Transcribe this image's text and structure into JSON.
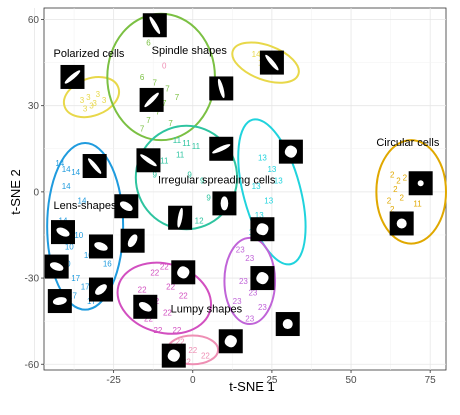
{
  "chart_data": {
    "type": "scatter",
    "title": "",
    "xlabel": "t-SNE 1",
    "ylabel": "t-SNE 2",
    "xlim": [
      -47,
      80
    ],
    "ylim": [
      -62,
      64
    ],
    "x_ticks": [
      -25,
      0,
      25,
      50,
      75
    ],
    "x_tick_labels": [
      "-25",
      "0",
      "25",
      "50",
      "75"
    ],
    "y_ticks": [
      -60,
      -30,
      0,
      30,
      60
    ],
    "y_tick_labels": [
      "-60",
      "-30",
      "0",
      "30",
      "60"
    ],
    "grid": true,
    "legend": "none",
    "groups": [
      {
        "label": "Polarized cells",
        "label_pos": [
          -44,
          47
        ],
        "color": "#e8d84a",
        "points": [
          [
            -35,
            32,
            "3"
          ],
          [
            -33,
            33,
            "3"
          ],
          [
            -31,
            31,
            "3"
          ],
          [
            -34,
            29,
            "3"
          ],
          [
            -30,
            34,
            "3"
          ],
          [
            -28,
            32,
            "3"
          ],
          [
            -32,
            30,
            "3"
          ]
        ],
        "ellipse": {
          "cx": -32,
          "cy": 33,
          "rx": 9,
          "ry": 6.5,
          "angle": 20
        }
      },
      {
        "label": "Spindle shapes",
        "label_pos": [
          -13,
          48
        ],
        "color": "#7bc043",
        "points": [
          [
            -15,
            57,
            "6"
          ],
          [
            -13,
            58,
            "6"
          ],
          [
            -14,
            52,
            "6"
          ],
          [
            -16,
            40,
            "6"
          ],
          [
            -12,
            38,
            "7"
          ],
          [
            -8,
            36,
            "7"
          ],
          [
            -5,
            33,
            "7"
          ],
          [
            -9,
            31,
            "7"
          ],
          [
            -11,
            28,
            "7"
          ],
          [
            -14,
            25,
            "7"
          ],
          [
            -16,
            22,
            "7"
          ],
          [
            -7,
            24,
            "7"
          ]
        ],
        "ellipse": {
          "cx": -10,
          "cy": 40,
          "rx": 17,
          "ry": 22,
          "angle": 0
        }
      },
      {
        "label": "",
        "label_pos": null,
        "color": "#e8d84a",
        "points": [
          [
            20,
            48,
            "14"
          ],
          [
            22,
            45,
            "14"
          ],
          [
            24,
            48,
            "14"
          ],
          [
            25,
            42,
            "14"
          ]
        ],
        "ellipse": {
          "cx": 23,
          "cy": 45,
          "rx": 11,
          "ry": 6,
          "angle": -20
        }
      },
      {
        "label": "",
        "label_pos": null,
        "color": "#ee8fb4",
        "points": [
          [
            -9,
            44,
            "0"
          ]
        ],
        "ellipse": null
      },
      {
        "label": "Irregular spreading cells",
        "label_pos": [
          -11,
          3
        ],
        "color": "#2ec4a0",
        "points": [
          [
            -5,
            18,
            "11"
          ],
          [
            -2,
            17,
            "11"
          ],
          [
            1,
            16,
            "11"
          ],
          [
            -4,
            13,
            "11"
          ],
          [
            -9,
            11,
            "11"
          ],
          [
            -12,
            6,
            "9"
          ],
          [
            -1,
            6,
            "9"
          ],
          [
            3,
            4,
            "9"
          ],
          [
            5,
            -2,
            "9"
          ],
          [
            8,
            -6,
            "12"
          ],
          [
            -2,
            -8,
            "9"
          ],
          [
            2,
            -10,
            "12"
          ]
        ],
        "ellipse": {
          "cx": -2,
          "cy": 5,
          "rx": 16,
          "ry": 18,
          "angle": 0
        }
      },
      {
        "label": "",
        "label_pos": null,
        "color": "#20d3dd",
        "points": [
          [
            22,
            12,
            "13"
          ],
          [
            25,
            8,
            "13"
          ],
          [
            27,
            4,
            "13"
          ],
          [
            20,
            2,
            "13"
          ],
          [
            24,
            -3,
            "13"
          ],
          [
            21,
            -8,
            "13"
          ],
          [
            19,
            -14,
            "13"
          ]
        ],
        "ellipse": {
          "cx": 25,
          "cy": 0,
          "rx": 9,
          "ry": 26,
          "angle": 15
        }
      },
      {
        "label": "Circular cells",
        "label_pos": [
          58,
          16
        ],
        "color": "#e0a800",
        "points": [
          [
            63,
            6,
            "2"
          ],
          [
            65,
            4,
            "2"
          ],
          [
            67,
            5,
            "2"
          ],
          [
            64,
            1,
            "2"
          ],
          [
            62,
            -3,
            "2"
          ],
          [
            66,
            -2,
            "2"
          ],
          [
            63,
            -6,
            "2"
          ],
          [
            71,
            -4,
            "11"
          ]
        ],
        "ellipse": {
          "cx": 69,
          "cy": 0,
          "rx": 11,
          "ry": 18,
          "angle": 0
        }
      },
      {
        "label": "Lens-shapes",
        "label_pos": [
          -44,
          -6
        ],
        "color": "#1f9bde",
        "points": [
          [
            -42,
            10,
            "14"
          ],
          [
            -40,
            8,
            "14"
          ],
          [
            -37,
            7,
            "14"
          ],
          [
            -40,
            2,
            "14"
          ],
          [
            -35,
            -3,
            "14"
          ],
          [
            -41,
            -10,
            "14"
          ],
          [
            -36,
            -15,
            "10"
          ],
          [
            -39,
            -19,
            "10"
          ],
          [
            -33,
            -22,
            "10"
          ],
          [
            -40,
            -25,
            "10"
          ],
          [
            -37,
            -30,
            "17"
          ],
          [
            -34,
            -33,
            "17"
          ],
          [
            -29,
            -33,
            "17"
          ],
          [
            -38,
            -36,
            "17"
          ],
          [
            -32,
            -38,
            "17"
          ],
          [
            -27,
            -25,
            "16"
          ],
          [
            -30,
            -19,
            "16"
          ]
        ],
        "ellipse": {
          "cx": -34,
          "cy": -12,
          "rx": 12,
          "ry": 29,
          "angle": 0
        }
      },
      {
        "label": "Lumpy shapes",
        "label_pos": [
          -7,
          -42
        ],
        "color": "#d24fc0",
        "points": [
          [
            -12,
            -28,
            "22"
          ],
          [
            -9,
            -26,
            "22"
          ],
          [
            -5,
            -27,
            "22"
          ],
          [
            -16,
            -34,
            "22"
          ],
          [
            -12,
            -38,
            "22"
          ],
          [
            -7,
            -33,
            "22"
          ],
          [
            -3,
            -36,
            "22"
          ],
          [
            -14,
            -44,
            "22"
          ],
          [
            -8,
            -42,
            "22"
          ],
          [
            -11,
            -48,
            "22"
          ],
          [
            -5,
            -48,
            "22"
          ]
        ],
        "ellipse": {
          "cx": -9,
          "cy": -37,
          "rx": 15,
          "ry": 12,
          "angle": -15
        }
      },
      {
        "label": "",
        "label_pos": null,
        "color": "#c064d8",
        "points": [
          [
            15,
            -20,
            "23"
          ],
          [
            18,
            -23,
            "23"
          ],
          [
            20,
            -27,
            "23"
          ],
          [
            16,
            -31,
            "23"
          ],
          [
            19,
            -35,
            "23"
          ],
          [
            14,
            -38,
            "23"
          ],
          [
            22,
            -40,
            "23"
          ],
          [
            18,
            -44,
            "23"
          ],
          [
            21,
            -32,
            "23"
          ]
        ],
        "ellipse": {
          "cx": 18,
          "cy": -31,
          "rx": 8,
          "ry": 15,
          "angle": 0
        }
      },
      {
        "label": "",
        "label_pos": null,
        "color": "#ee8fb4",
        "points": [
          [
            -4,
            -52,
            "22"
          ],
          [
            0,
            -55,
            "22"
          ],
          [
            4,
            -57,
            "22"
          ],
          [
            -2,
            -59,
            "22"
          ]
        ],
        "ellipse": {
          "cx": 0,
          "cy": -55,
          "rx": 8,
          "ry": 5,
          "angle": 0
        }
      }
    ],
    "cell_images": [
      {
        "x": -12,
        "y": 58,
        "shape": "elongated",
        "angle": -60
      },
      {
        "x": 25,
        "y": 45,
        "shape": "elongated",
        "angle": -50
      },
      {
        "x": -38,
        "y": 40,
        "shape": "elongated",
        "angle": 40
      },
      {
        "x": -13,
        "y": 32,
        "shape": "elongated",
        "angle": 45
      },
      {
        "x": 9,
        "y": 36,
        "shape": "elongated",
        "angle": -75
      },
      {
        "x": 9,
        "y": 15,
        "shape": "elongated",
        "angle": 25
      },
      {
        "x": 31,
        "y": 14,
        "shape": "blob",
        "angle": 0
      },
      {
        "x": -14,
        "y": 11,
        "shape": "elongated",
        "angle": -35
      },
      {
        "x": -31,
        "y": 9,
        "shape": "elongated",
        "angle": -50
      },
      {
        "x": -21,
        "y": -5,
        "shape": "lens",
        "angle": -30
      },
      {
        "x": -4,
        "y": -9,
        "shape": "elongated",
        "angle": 80
      },
      {
        "x": 10,
        "y": -4,
        "shape": "lens",
        "angle": 90
      },
      {
        "x": 22,
        "y": -13,
        "shape": "blob",
        "angle": 10
      },
      {
        "x": -41,
        "y": -14,
        "shape": "lens",
        "angle": -25
      },
      {
        "x": -29,
        "y": -19,
        "shape": "lens",
        "angle": -20
      },
      {
        "x": -19,
        "y": -17,
        "shape": "lens",
        "angle": 60
      },
      {
        "x": -43,
        "y": -26,
        "shape": "lens",
        "angle": -20
      },
      {
        "x": -29,
        "y": -34,
        "shape": "lens",
        "angle": 40
      },
      {
        "x": -42,
        "y": -38,
        "shape": "lens",
        "angle": 10
      },
      {
        "x": -3,
        "y": -28,
        "shape": "blob",
        "angle": 0
      },
      {
        "x": 22,
        "y": -30,
        "shape": "blob",
        "angle": 0
      },
      {
        "x": -15,
        "y": -40,
        "shape": "lens",
        "angle": -30
      },
      {
        "x": 30,
        "y": -46,
        "shape": "round",
        "angle": 0
      },
      {
        "x": 12,
        "y": -52,
        "shape": "blob",
        "angle": 0
      },
      {
        "x": -6,
        "y": -57,
        "shape": "blob",
        "angle": 0
      },
      {
        "x": 72,
        "y": 3,
        "shape": "dot",
        "angle": 0
      },
      {
        "x": 66,
        "y": -11,
        "shape": "round",
        "angle": 0
      }
    ]
  }
}
